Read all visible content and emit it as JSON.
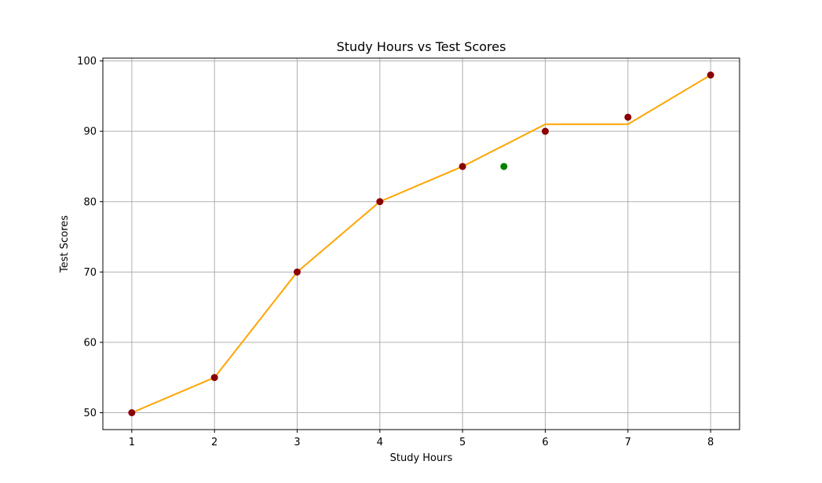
{
  "chart_data": {
    "type": "line",
    "title": "Study Hours vs Test Scores",
    "xlabel": "Study Hours",
    "ylabel": "Test Scores",
    "xlim": [
      0.65,
      8.35
    ],
    "ylim": [
      47.6,
      100.4
    ],
    "xticks": [
      1,
      2,
      3,
      4,
      5,
      6,
      7,
      8
    ],
    "yticks": [
      50,
      60,
      70,
      80,
      90,
      100
    ],
    "grid": true,
    "series": [
      {
        "type": "scatter",
        "color": "#8b0000",
        "points": [
          [
            1,
            50
          ],
          [
            2,
            55
          ],
          [
            3,
            70
          ],
          [
            4,
            80
          ],
          [
            5,
            85
          ],
          [
            6,
            90
          ],
          [
            7,
            92
          ],
          [
            8,
            98
          ]
        ]
      },
      {
        "type": "line",
        "color": "#ffa500",
        "points": [
          [
            1,
            50
          ],
          [
            2,
            55
          ],
          [
            3,
            70
          ],
          [
            4,
            80
          ],
          [
            5,
            85
          ],
          [
            6,
            91
          ],
          [
            7,
            91
          ],
          [
            8,
            98
          ]
        ]
      },
      {
        "type": "scatter",
        "color": "#008000",
        "points": [
          [
            5.5,
            85
          ]
        ]
      }
    ]
  }
}
